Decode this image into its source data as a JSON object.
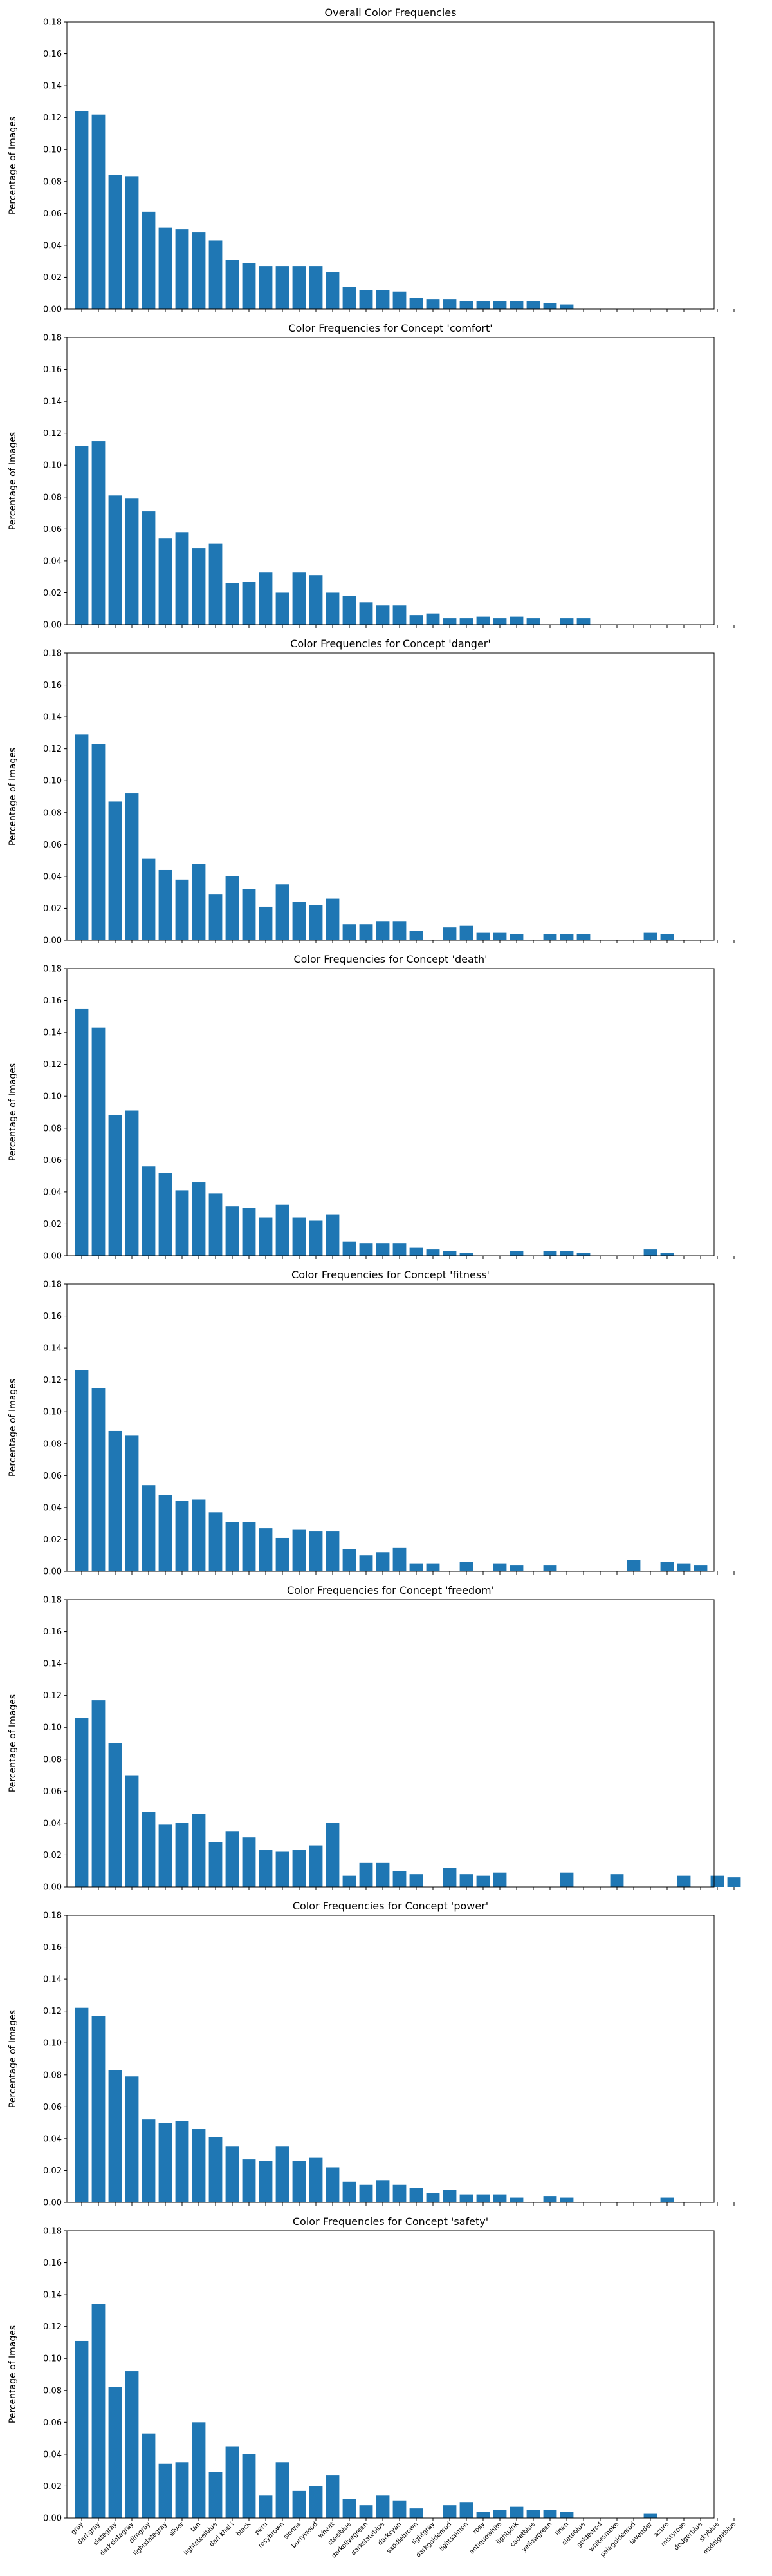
{
  "chart_data": {
    "type": "bar",
    "ylabel": "Percentage of Images",
    "ylim": [
      0,
      0.18
    ],
    "yticks": [
      "0.00",
      "0.02",
      "0.04",
      "0.06",
      "0.08",
      "0.10",
      "0.12",
      "0.14",
      "0.16",
      "0.18"
    ],
    "bar_color": "#1f77b4",
    "categories": [
      "gray",
      "darkgray",
      "slategray",
      "darkslategray",
      "dimgray",
      "lightslategray",
      "silver",
      "tan",
      "lightsteelblue",
      "darkkhaki",
      "black",
      "peru",
      "rosybrown",
      "sienna",
      "burlywood",
      "wheat",
      "steelblue",
      "darkolivegreen",
      "darkslateblue",
      "darkcyan",
      "saddlebrown",
      "lightgray",
      "darkgoldenrod",
      "lightsalmon",
      "rosy",
      "antiquewhite",
      "lightpink",
      "cadetblue",
      "yellowgreen",
      "linen",
      "slateblue",
      "goldenrod",
      "whitesmoke",
      "palegoldenrod",
      "lavender",
      "azure",
      "mistyrose",
      "dodgerblue",
      "skyblue",
      "midnightblue"
    ],
    "panels": [
      {
        "title": "Overall Color Frequencies",
        "values": [
          0.124,
          0.122,
          0.084,
          0.083,
          0.061,
          0.051,
          0.05,
          0.048,
          0.043,
          0.031,
          0.029,
          0.027,
          0.027,
          0.027,
          0.027,
          0.023,
          0.014,
          0.012,
          0.012,
          0.011,
          0.007,
          0.006,
          0.006,
          0.005,
          0.005,
          0.005,
          0.005,
          0.005,
          0.004,
          0.003,
          0,
          0,
          0,
          0,
          0,
          0,
          0,
          0,
          0,
          0
        ]
      },
      {
        "title": "Color Frequencies for Concept 'comfort'",
        "values": [
          0.112,
          0.115,
          0.081,
          0.079,
          0.071,
          0.054,
          0.058,
          0.048,
          0.051,
          0.026,
          0.027,
          0.033,
          0.02,
          0.033,
          0.031,
          0.02,
          0.018,
          0.014,
          0.012,
          0.012,
          0.006,
          0.007,
          0.004,
          0.004,
          0.005,
          0.004,
          0.005,
          0.004,
          0,
          0.004,
          0.004,
          0,
          0,
          0,
          0,
          0,
          0,
          0,
          0,
          0
        ]
      },
      {
        "title": "Color Frequencies for Concept 'danger'",
        "values": [
          0.129,
          0.123,
          0.087,
          0.092,
          0.051,
          0.044,
          0.038,
          0.048,
          0.029,
          0.04,
          0.032,
          0.021,
          0.035,
          0.024,
          0.022,
          0.026,
          0.01,
          0.01,
          0.012,
          0.012,
          0.006,
          0,
          0.008,
          0.009,
          0.005,
          0.005,
          0.004,
          0,
          0.004,
          0.004,
          0.004,
          0,
          0,
          0,
          0.005,
          0.004,
          0,
          0,
          0,
          0
        ]
      },
      {
        "title": "Color Frequencies for Concept 'death'",
        "values": [
          0.155,
          0.143,
          0.088,
          0.091,
          0.056,
          0.052,
          0.041,
          0.046,
          0.039,
          0.031,
          0.03,
          0.024,
          0.032,
          0.024,
          0.022,
          0.026,
          0.009,
          0.008,
          0.008,
          0.008,
          0.005,
          0.004,
          0.003,
          0.002,
          0,
          0,
          0.003,
          0,
          0.003,
          0.003,
          0.002,
          0,
          0,
          0,
          0.004,
          0.002,
          0,
          0,
          0,
          0
        ]
      },
      {
        "title": "Color Frequencies for Concept 'fitness'",
        "values": [
          0.126,
          0.115,
          0.088,
          0.085,
          0.054,
          0.048,
          0.044,
          0.045,
          0.037,
          0.031,
          0.031,
          0.027,
          0.021,
          0.026,
          0.025,
          0.025,
          0.014,
          0.01,
          0.012,
          0.015,
          0.005,
          0.005,
          0,
          0.006,
          0,
          0.005,
          0.004,
          0,
          0.004,
          0,
          0,
          0,
          0,
          0.007,
          0,
          0.006,
          0.005,
          0.004,
          0,
          0
        ]
      },
      {
        "title": "Color Frequencies for Concept 'freedom'",
        "values": [
          0.106,
          0.117,
          0.09,
          0.07,
          0.047,
          0.039,
          0.04,
          0.046,
          0.028,
          0.035,
          0.031,
          0.023,
          0.022,
          0.023,
          0.026,
          0.04,
          0.007,
          0.015,
          0.015,
          0.01,
          0.008,
          0,
          0.012,
          0.008,
          0.007,
          0.009,
          0,
          0,
          0,
          0.009,
          0,
          0,
          0.008,
          0,
          0,
          0,
          0.007,
          0,
          0.007,
          0.006
        ]
      },
      {
        "title": "Color Frequencies for Concept 'power'",
        "values": [
          0.122,
          0.117,
          0.083,
          0.079,
          0.052,
          0.05,
          0.051,
          0.046,
          0.041,
          0.035,
          0.027,
          0.026,
          0.035,
          0.026,
          0.028,
          0.022,
          0.013,
          0.011,
          0.014,
          0.011,
          0.009,
          0.006,
          0.008,
          0.005,
          0.005,
          0.005,
          0.003,
          0,
          0.004,
          0.003,
          0,
          0,
          0,
          0,
          0,
          0.003,
          0,
          0,
          0,
          0
        ]
      },
      {
        "title": "Color Frequencies for Concept 'safety'",
        "values": [
          0.111,
          0.134,
          0.082,
          0.092,
          0.053,
          0.034,
          0.035,
          0.06,
          0.029,
          0.045,
          0.04,
          0.014,
          0.035,
          0.017,
          0.02,
          0.027,
          0.012,
          0.008,
          0.014,
          0.011,
          0.006,
          0,
          0.008,
          0.01,
          0.004,
          0.005,
          0.007,
          0.005,
          0.005,
          0.004,
          0,
          0,
          0,
          0,
          0.003,
          0,
          0,
          0,
          0,
          0
        ]
      }
    ]
  }
}
